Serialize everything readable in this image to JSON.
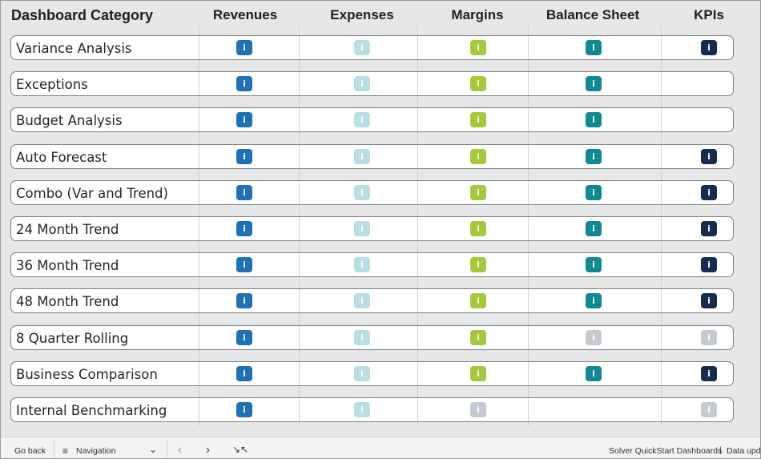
{
  "header": {
    "category_label": "Dashboard Category",
    "columns": [
      "Revenues",
      "Expenses",
      "Margins",
      "Balance Sheet",
      "KPIs"
    ]
  },
  "colors": {
    "revenues": "#2070b8",
    "expenses": "#b7dfe4",
    "margins": "#a4c93a",
    "balance_sheet": "#0f8a93",
    "kpis": "#152b4f",
    "disabled": "#c5cad1"
  },
  "info_glyph": "i",
  "rows": [
    {
      "label": "Variance Analysis",
      "cells": [
        "revenues",
        "expenses",
        "margins",
        "balance_sheet",
        "kpis"
      ]
    },
    {
      "label": "Exceptions",
      "cells": [
        "revenues",
        "expenses",
        "margins",
        "balance_sheet",
        null
      ]
    },
    {
      "label": "Budget Analysis",
      "cells": [
        "revenues",
        "expenses",
        "margins",
        "balance_sheet",
        null
      ]
    },
    {
      "label": "Auto Forecast",
      "cells": [
        "revenues",
        "expenses",
        "margins",
        "balance_sheet",
        "kpis"
      ]
    },
    {
      "label": "Combo (Var and Trend)",
      "cells": [
        "revenues",
        "expenses",
        "margins",
        "balance_sheet",
        "kpis"
      ]
    },
    {
      "label": "24 Month Trend",
      "cells": [
        "revenues",
        "expenses",
        "margins",
        "balance_sheet",
        "kpis"
      ]
    },
    {
      "label": "36 Month Trend",
      "cells": [
        "revenues",
        "expenses",
        "margins",
        "balance_sheet",
        "kpis"
      ]
    },
    {
      "label": "48 Month Trend",
      "cells": [
        "revenues",
        "expenses",
        "margins",
        "balance_sheet",
        "kpis"
      ]
    },
    {
      "label": "8 Quarter Rolling",
      "cells": [
        "revenues",
        "expenses",
        "margins",
        "disabled",
        "disabled"
      ]
    },
    {
      "label": "Business Comparison",
      "cells": [
        "revenues",
        "expenses",
        "margins",
        "balance_sheet",
        "kpis"
      ]
    },
    {
      "label": "Internal Benchmarking",
      "cells": [
        "revenues",
        "expenses",
        "disabled",
        null,
        "disabled"
      ]
    }
  ],
  "footer": {
    "back_label": "Go back",
    "navigation_label": "Navigation",
    "brand_label": "Solver QuickStart Dashboards",
    "separator": "|",
    "data_updated_label": "Data upd"
  },
  "icons": {
    "navigation": "list-icon",
    "chevron": "chevron-down-icon",
    "prev": "prev-page-icon",
    "next": "next-page-icon",
    "collapse": "collapse-icon"
  }
}
